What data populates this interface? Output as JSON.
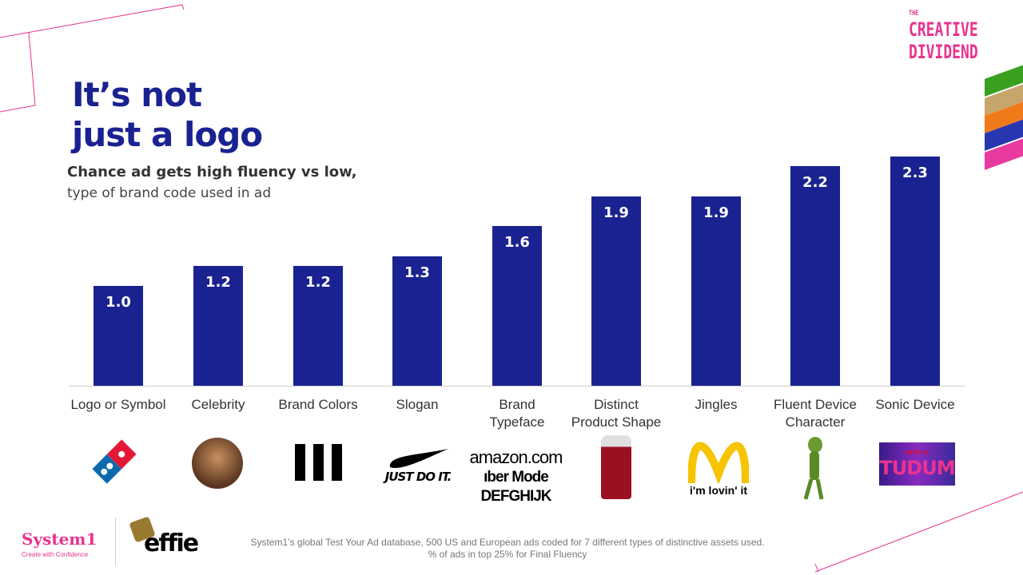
{
  "title": [
    "It’s not",
    "just a logo"
  ],
  "subtitle_bold": "Chance ad gets high fluency vs low,",
  "subtitle": "type of brand code used in ad",
  "brand_logo": {
    "the": "THE",
    "line1": "CREATIVE",
    "line2": "DIVIDEND"
  },
  "chart_data": {
    "type": "bar",
    "categories": [
      "Logo or Symbol",
      "Celebrity",
      "Brand Colors",
      "Slogan",
      "Brand Typeface",
      "Distinct Product Shape",
      "Jingles",
      "Fluent Device Character",
      "Sonic Device"
    ],
    "category_lines": [
      [
        "Logo or Symbol"
      ],
      [
        "Celebrity"
      ],
      [
        "Brand Colors"
      ],
      [
        "Slogan"
      ],
      [
        "Brand",
        "Typeface"
      ],
      [
        "Distinct",
        "Product Shape"
      ],
      [
        "Jingles"
      ],
      [
        "Fluent Device",
        "Character"
      ],
      [
        "Sonic Device"
      ]
    ],
    "values": [
      1.0,
      1.2,
      1.2,
      1.3,
      1.6,
      1.9,
      1.9,
      2.2,
      2.3
    ],
    "labels": [
      "1.0",
      "1.2",
      "1.2",
      "1.3",
      "1.6",
      "1.9",
      "1.9",
      "2.2",
      "2.3"
    ],
    "title": "Chance ad gets high fluency vs low,",
    "ylim": [
      0,
      2.4
    ],
    "grid": false,
    "bar_color": "#1a2291"
  },
  "logos": {
    "nike": "JUST DO IT.",
    "amazon": "amazon.com",
    "typeface": "DEFGHIJK",
    "uber": "ıber Mode",
    "mcd": "i'm lovin' it",
    "netflix": "NETFLIX",
    "tudum": "TUDUM"
  },
  "footer": {
    "system1": "System1",
    "tagline": "Create with Confidence",
    "effie": "effie",
    "note1": "System1’s global Test Your Ad database, 500 US and European ads coded for 7 different types of distinctive assets used.",
    "note2": "% of ads in top 25% for Final Fluency"
  },
  "colors": {
    "navy": "#1a2291",
    "pink": "#e8338f"
  }
}
